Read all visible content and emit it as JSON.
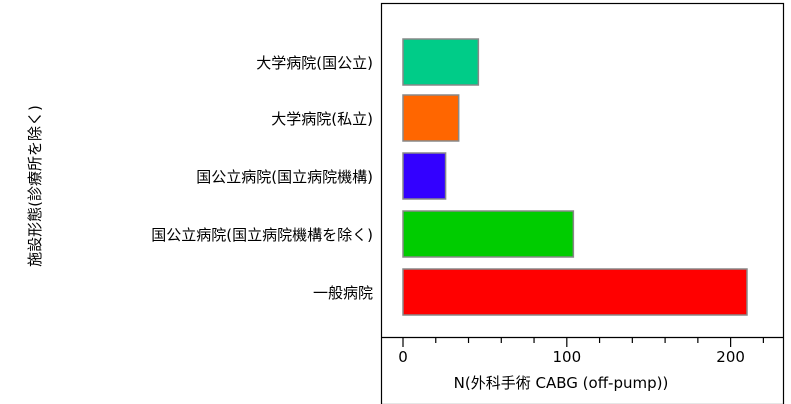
{
  "chart_data": {
    "type": "bar",
    "orientation": "horizontal",
    "categories": [
      "大学病院(国公立)",
      "大学病院(私立)",
      "国公立病院(国立病院機構)",
      "国公立病院(国立病院機構を除く)",
      "一般病院"
    ],
    "values": [
      46,
      34,
      26,
      104,
      210
    ],
    "colors": [
      "#00cc88",
      "#ff6600",
      "#3300ff",
      "#00cc00",
      "#ff0000"
    ],
    "xlabel": "N(外科手術 CABG (off-pump))",
    "ylabel": "施設形態(診療所を除く)",
    "xlim": [
      0,
      230
    ],
    "xticks": [
      0,
      100,
      200
    ],
    "minor_tick_step": 20,
    "grid": false,
    "legend": "none"
  }
}
